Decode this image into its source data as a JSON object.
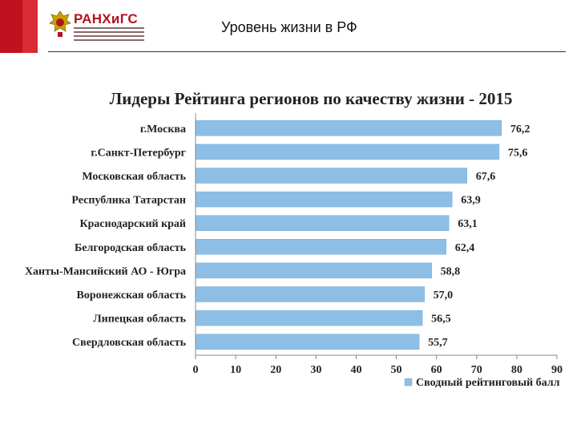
{
  "header": {
    "logo_text": "РАНХиГС",
    "title": "Уровень жизни в РФ"
  },
  "colors": {
    "brand_red": "#c0111f",
    "bar_fill": "#8dbfe6",
    "bar_stroke": "#7aaed8"
  },
  "chart_data": {
    "type": "bar",
    "orientation": "horizontal",
    "title": "Лидеры Рейтинга регионов по качеству жизни - 2015",
    "categories": [
      "г.Москва",
      "г.Санкт-Петербург",
      "Московская область",
      "Республика Татарстан",
      "Краснодарский край",
      "Белгородская область",
      "Ханты-Мансийский АО - Югра",
      "Воронежская область",
      "Липецкая область",
      "Свердловская область"
    ],
    "values": [
      76.2,
      75.6,
      67.6,
      63.9,
      63.1,
      62.4,
      58.8,
      57.0,
      56.5,
      55.7
    ],
    "value_labels": [
      "76,2",
      "75,6",
      "67,6",
      "63,9",
      "63,1",
      "62,4",
      "58,8",
      "57,0",
      "56,5",
      "55,7"
    ],
    "series": [
      {
        "name": "Сводный рейтинговый балл"
      }
    ],
    "xlim": [
      0,
      90
    ],
    "xticks": [
      0,
      10,
      20,
      30,
      40,
      50,
      60,
      70,
      80,
      90
    ],
    "legend_position": "bottom-right",
    "grid": false
  }
}
